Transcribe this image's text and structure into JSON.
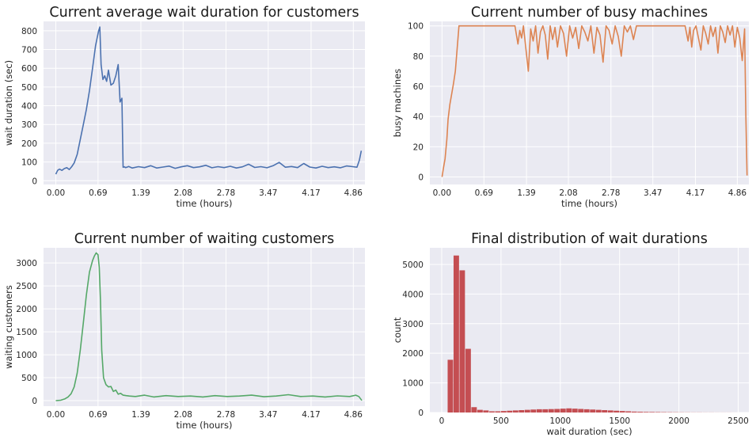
{
  "chart_data": [
    {
      "type": "line",
      "title": "Current average wait duration for customers",
      "xlabel": "time (hours)",
      "ylabel": "wait duration (sec)",
      "xlim": [
        -0.2,
        5.05
      ],
      "ylim": [
        -20,
        850
      ],
      "xticks": [
        "0.00",
        "0.69",
        "1.39",
        "2.08",
        "2.78",
        "3.47",
        "4.17",
        "4.86"
      ],
      "yticks": [
        "0",
        "100",
        "200",
        "300",
        "400",
        "500",
        "600",
        "700",
        "800"
      ],
      "color": "#4c72b0",
      "series": [
        {
          "x": [
            0.0,
            0.03,
            0.06,
            0.1,
            0.14,
            0.18,
            0.22,
            0.26,
            0.3,
            0.35,
            0.4,
            0.45,
            0.5,
            0.55,
            0.6,
            0.65,
            0.7,
            0.72,
            0.74,
            0.77,
            0.8,
            0.83,
            0.86,
            0.9,
            0.94,
            0.98,
            1.02,
            1.05,
            1.08,
            1.1,
            1.12,
            1.14,
            1.16,
            1.19,
            1.25,
            1.35,
            1.45,
            1.55,
            1.65,
            1.75,
            1.85,
            1.95,
            2.05,
            2.15,
            2.25,
            2.35,
            2.45,
            2.55,
            2.65,
            2.75,
            2.85,
            2.95,
            3.05,
            3.15,
            3.25,
            3.35,
            3.45,
            3.55,
            3.65,
            3.75,
            3.85,
            3.95,
            4.05,
            4.15,
            4.25,
            4.35,
            4.45,
            4.55,
            4.65,
            4.75,
            4.85,
            4.92,
            4.96,
            4.99
          ],
          "y": [
            35,
            55,
            62,
            55,
            65,
            70,
            60,
            75,
            95,
            140,
            220,
            300,
            380,
            480,
            600,
            720,
            800,
            820,
            620,
            540,
            560,
            530,
            590,
            510,
            520,
            560,
            620,
            420,
            440,
            72,
            74,
            70,
            72,
            76,
            68,
            75,
            70,
            80,
            68,
            73,
            78,
            66,
            74,
            80,
            70,
            74,
            82,
            69,
            75,
            70,
            77,
            68,
            74,
            88,
            71,
            75,
            69,
            80,
            98,
            72,
            76,
            70,
            92,
            73,
            68,
            77,
            70,
            74,
            69,
            79,
            75,
            72,
            110,
            160
          ]
        }
      ]
    },
    {
      "type": "line",
      "title": "Current number of busy machines",
      "xlabel": "time (hours)",
      "ylabel": "busy machines",
      "xlim": [
        -0.2,
        5.05
      ],
      "ylim": [
        -5,
        103
      ],
      "xticks": [
        "0.00",
        "0.69",
        "1.39",
        "2.08",
        "2.78",
        "3.47",
        "4.17",
        "4.86"
      ],
      "yticks": [
        "0",
        "20",
        "40",
        "60",
        "80",
        "100"
      ],
      "color": "#dd8452",
      "series": [
        {
          "x": [
            0.0,
            0.02,
            0.05,
            0.08,
            0.1,
            0.13,
            0.16,
            0.19,
            0.22,
            0.25,
            0.28,
            0.4,
            0.8,
            1.2,
            1.25,
            1.28,
            1.31,
            1.34,
            1.38,
            1.42,
            1.46,
            1.5,
            1.54,
            1.58,
            1.62,
            1.66,
            1.7,
            1.74,
            1.78,
            1.82,
            1.86,
            1.9,
            1.95,
            2.0,
            2.05,
            2.1,
            2.15,
            2.2,
            2.25,
            2.3,
            2.35,
            2.4,
            2.45,
            2.5,
            2.55,
            2.6,
            2.65,
            2.7,
            2.75,
            2.8,
            2.85,
            2.9,
            2.95,
            3.0,
            3.05,
            3.1,
            3.15,
            3.2,
            3.3,
            3.5,
            3.8,
            4.0,
            4.05,
            4.08,
            4.11,
            4.14,
            4.18,
            4.22,
            4.26,
            4.3,
            4.34,
            4.38,
            4.42,
            4.46,
            4.5,
            4.54,
            4.58,
            4.62,
            4.66,
            4.7,
            4.74,
            4.78,
            4.82,
            4.86,
            4.9,
            4.94,
            4.98,
            5.0,
            5.02
          ],
          "y": [
            0,
            5,
            12,
            25,
            38,
            48,
            55,
            62,
            70,
            85,
            100,
            100,
            100,
            100,
            88,
            97,
            92,
            100,
            85,
            70,
            98,
            90,
            100,
            82,
            96,
            100,
            94,
            78,
            100,
            91,
            99,
            86,
            100,
            95,
            80,
            100,
            92,
            99,
            85,
            100,
            96,
            90,
            100,
            82,
            99,
            94,
            76,
            100,
            97,
            88,
            100,
            93,
            80,
            100,
            96,
            100,
            91,
            100,
            100,
            100,
            100,
            100,
            90,
            99,
            86,
            97,
            100,
            92,
            84,
            100,
            95,
            88,
            100,
            93,
            99,
            82,
            100,
            96,
            89,
            100,
            94,
            100,
            86,
            99,
            92,
            77,
            98,
            40,
            1
          ]
        }
      ]
    },
    {
      "type": "line",
      "title": "Current number of waiting customers",
      "xlabel": "time (hours)",
      "ylabel": "waiting customers",
      "xlim": [
        -0.2,
        5.05
      ],
      "ylim": [
        -120,
        3330
      ],
      "xticks": [
        "0.00",
        "0.69",
        "1.39",
        "2.08",
        "2.78",
        "3.47",
        "4.17",
        "4.86"
      ],
      "yticks": [
        "0",
        "500",
        "1000",
        "1500",
        "2000",
        "2500",
        "3000"
      ],
      "color": "#55a868",
      "series": [
        {
          "x": [
            0.0,
            0.08,
            0.15,
            0.2,
            0.25,
            0.3,
            0.35,
            0.4,
            0.45,
            0.5,
            0.55,
            0.6,
            0.63,
            0.66,
            0.69,
            0.71,
            0.73,
            0.75,
            0.78,
            0.82,
            0.86,
            0.9,
            0.94,
            0.98,
            1.02,
            1.06,
            1.1,
            1.15,
            1.2,
            1.3,
            1.45,
            1.6,
            1.8,
            2.0,
            2.2,
            2.4,
            2.6,
            2.8,
            3.0,
            3.2,
            3.4,
            3.6,
            3.8,
            4.0,
            4.2,
            4.4,
            4.6,
            4.8,
            4.9,
            4.95,
            5.0
          ],
          "y": [
            0,
            10,
            40,
            80,
            150,
            300,
            600,
            1100,
            1700,
            2300,
            2800,
            3050,
            3150,
            3220,
            3180,
            2900,
            2200,
            1100,
            500,
            350,
            300,
            310,
            200,
            230,
            140,
            160,
            120,
            110,
            100,
            90,
            120,
            80,
            110,
            90,
            100,
            80,
            110,
            90,
            100,
            120,
            85,
            100,
            130,
            90,
            100,
            80,
            105,
            90,
            120,
            90,
            5
          ]
        }
      ]
    },
    {
      "type": "bar",
      "title": "Final distribution of wait durations",
      "xlabel": "wait duration (sec)",
      "ylabel": "count",
      "xlim": [
        -100,
        2590
      ],
      "ylim": [
        0,
        5560
      ],
      "xticks": [
        "0",
        "500",
        "1000",
        "1500",
        "2000",
        "2500"
      ],
      "yticks": [
        "0",
        "1000",
        "2000",
        "3000",
        "4000",
        "5000"
      ],
      "color": "#c44e52",
      "bin_edges": [
        50,
        100,
        150,
        200,
        250,
        300,
        350,
        400,
        450,
        500,
        550,
        600,
        650,
        700,
        750,
        800,
        850,
        900,
        950,
        1000,
        1050,
        1100,
        1150,
        1200,
        1250,
        1300,
        1350,
        1400,
        1450,
        1500,
        1550,
        1600,
        1650,
        1700,
        1750,
        1800,
        1850,
        1900,
        1950,
        2000,
        2050,
        2100,
        2150,
        2200,
        2250,
        2300,
        2350,
        2400,
        2450,
        2500
      ],
      "counts": [
        1780,
        5300,
        4800,
        2150,
        180,
        90,
        70,
        40,
        40,
        50,
        60,
        70,
        80,
        90,
        100,
        110,
        110,
        115,
        120,
        130,
        140,
        130,
        120,
        110,
        100,
        90,
        80,
        70,
        60,
        50,
        40,
        30,
        25,
        20,
        18,
        15,
        12,
        10,
        8,
        6,
        5,
        4,
        4,
        3,
        3,
        2,
        2,
        2,
        1
      ]
    }
  ]
}
